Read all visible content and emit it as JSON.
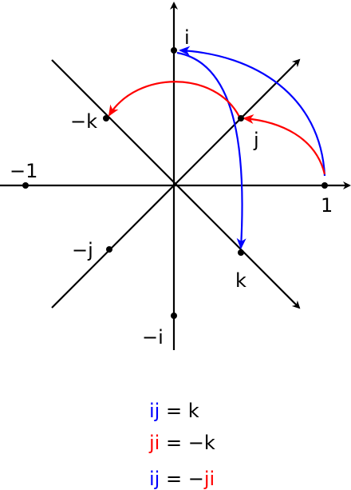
{
  "points": {
    "one": "1",
    "minus_one": "−1",
    "i": "i",
    "minus_i": "−i",
    "j": "j",
    "minus_j": "−j",
    "k": "k",
    "minus_k": "−k"
  },
  "equations": [
    [
      {
        "text": "ij",
        "color": "#0000ff"
      },
      {
        "text": " = k",
        "color": "#000000"
      }
    ],
    [
      {
        "text": "ji",
        "color": "#ff0000"
      },
      {
        "text": " = −k",
        "color": "#000000"
      }
    ],
    [
      {
        "text": "ij",
        "color": "#0000ff"
      },
      {
        "text": " = −",
        "color": "#000000"
      },
      {
        "text": "ji",
        "color": "#ff0000"
      }
    ]
  ]
}
